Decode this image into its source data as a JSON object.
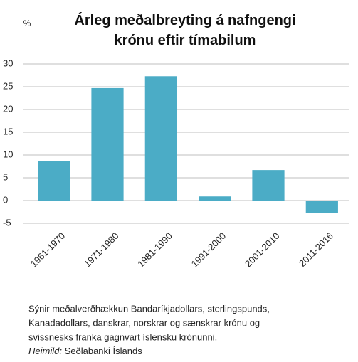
{
  "chart_data": {
    "type": "bar",
    "title": [
      "Árleg meðalbreyting á nafngengi",
      "krónu eftir tímabilum"
    ],
    "ylabel": "%",
    "categories": [
      "1961-1970",
      "1971-1980",
      "1981-1990",
      "1991-2000",
      "2001-2010",
      "2011-2016"
    ],
    "values": [
      8.7,
      24.7,
      27.3,
      0.9,
      6.7,
      -2.7
    ],
    "color": "#4bacc6",
    "ylim": [
      -5,
      30
    ],
    "yticks": [
      -5,
      0,
      5,
      10,
      15,
      20,
      25,
      30
    ],
    "grid": true
  },
  "caption": {
    "lines": [
      "Sýnir meðalverðhækkun Bandaríkjadollars, sterlingspunds,",
      "Kanadadollars, danskrar, norskrar og sænskrar krónu og",
      "svissnesks franka gagnvart íslensku krónunni."
    ],
    "source_label": "Heimild:",
    "source": "Seðlabanki Íslands"
  }
}
